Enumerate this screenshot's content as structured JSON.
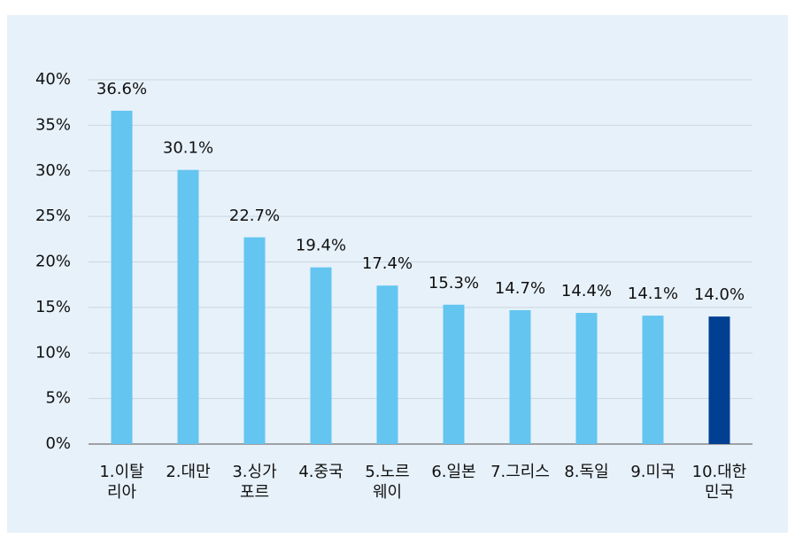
{
  "chart_data": {
    "type": "bar",
    "categories": [
      "1.이탈\n리아",
      "2.대만",
      "3.싱가\n포르",
      "4.중국",
      "5.노르\n웨이",
      "6.일본",
      "7.그리스",
      "8.독일",
      "9.미국",
      "10.대한\n민국"
    ],
    "values": [
      36.6,
      30.1,
      22.7,
      19.4,
      17.4,
      15.3,
      14.7,
      14.4,
      14.1,
      14.0
    ],
    "value_labels": [
      "36.6%",
      "30.1%",
      "22.7%",
      "19.4%",
      "17.4%",
      "15.3%",
      "14.7%",
      "14.4%",
      "14.1%",
      "14.0%"
    ],
    "colors": [
      "#63c5f0",
      "#63c5f0",
      "#63c5f0",
      "#63c5f0",
      "#63c5f0",
      "#63c5f0",
      "#63c5f0",
      "#63c5f0",
      "#63c5f0",
      "#003f91"
    ],
    "ylim": [
      0,
      40
    ],
    "yticks": [
      {
        "value": 0,
        "label": "0%"
      },
      {
        "value": 5,
        "label": "5%"
      },
      {
        "value": 10,
        "label": "10%"
      },
      {
        "value": 15,
        "label": "15%"
      },
      {
        "value": 20,
        "label": "20%"
      },
      {
        "value": 25,
        "label": "25%"
      },
      {
        "value": 30,
        "label": "30%"
      },
      {
        "value": 35,
        "label": "35%"
      },
      {
        "value": 40,
        "label": "40%"
      }
    ],
    "grid": true
  }
}
